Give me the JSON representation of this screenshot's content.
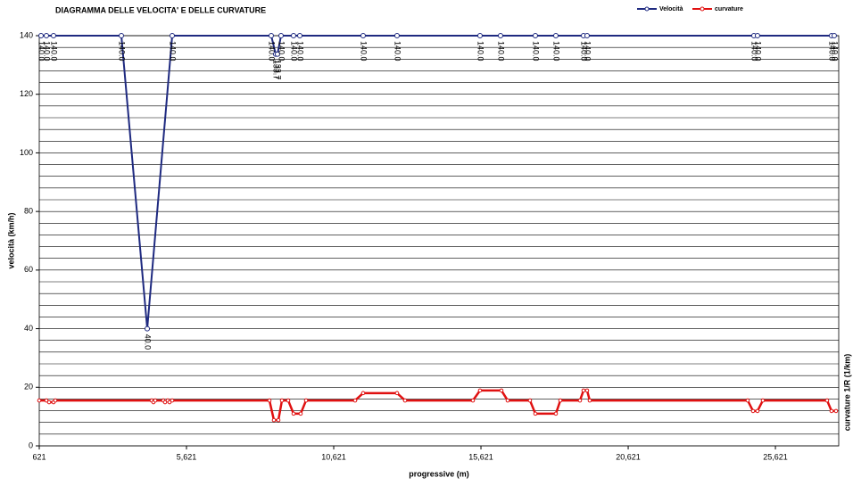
{
  "chart_data": {
    "type": "line",
    "title": "DIAGRAMMA DELLE VELOCITA' E DELLE CURVATURE",
    "xlabel": "progressive (m)",
    "ylabel": "velocità (km/h)",
    "y2label": "curvature 1/R (1/km)",
    "xlim": [
      621,
      27771
    ],
    "xticks": [
      {
        "value": 621,
        "label": "621"
      },
      {
        "value": 5621,
        "label": "5,621"
      },
      {
        "value": 10621,
        "label": "10,621"
      },
      {
        "value": 15621,
        "label": "15,621"
      },
      {
        "value": 20621,
        "label": "20,621"
      },
      {
        "value": 25621,
        "label": "25,621"
      }
    ],
    "ylim": [
      0,
      140
    ],
    "yticks": [
      0,
      20,
      40,
      60,
      80,
      100,
      120,
      140
    ],
    "ygrid": [
      0,
      4,
      8,
      12,
      16,
      20,
      24,
      28,
      32,
      36,
      40,
      44,
      48,
      52,
      56,
      60,
      64,
      68,
      72,
      76,
      80,
      84,
      88,
      92,
      96,
      100,
      104,
      108,
      112,
      116,
      120,
      124,
      128,
      132,
      136,
      140
    ],
    "y2lim": [
      0,
      140
    ],
    "legend": "top-right",
    "series": [
      {
        "name": "Velocità",
        "color": "#1f2a80",
        "x": [
          681,
          863,
          1106,
          3409,
          4288,
          5136,
          8499,
          8650,
          8711,
          8832,
          9256,
          9469,
          11620,
          12771,
          15589,
          16286,
          17468,
          18165,
          19104,
          19225,
          24891,
          25012,
          27527,
          27618
        ],
        "values": [
          140,
          140,
          140,
          140,
          40,
          140,
          140,
          133.7,
          133.7,
          140,
          140,
          140,
          140,
          140,
          140,
          140,
          140,
          140,
          140,
          140,
          140,
          140,
          140,
          140
        ],
        "value_labels": [
          "140.0",
          "140.0",
          "140.0",
          "140.0",
          "40.0",
          "140.0",
          "140.0",
          "133.7",
          "133.7",
          "140.0",
          "140.0",
          "140.0",
          "140.0",
          "140.0",
          "140.0",
          "140.0",
          "140.0",
          "140.0",
          "140.0",
          "140.0",
          "140.0",
          "140.0",
          "140.0",
          "140.0"
        ]
      },
      {
        "name": "curvature",
        "color": "#e01010",
        "axis": "y2",
        "x": [
          621,
          863,
          954,
          1106,
          1166,
          4439,
          4499,
          4560,
          4833,
          4893,
          4984,
          5045,
          5136,
          8438,
          8590,
          8741,
          8863,
          9075,
          9257,
          9499,
          9681,
          11347,
          11620,
          12771,
          13044,
          15347,
          15589,
          16316,
          16529,
          17286,
          17468,
          18165,
          18317,
          18983,
          19104,
          19225,
          19316,
          24679,
          24861,
          25012,
          25194,
          27376,
          27527,
          27679
        ],
        "values": [
          15.5,
          15.5,
          14.9,
          14.9,
          15.5,
          15.5,
          14.9,
          15.5,
          15.5,
          14.9,
          15.5,
          14.9,
          15.5,
          15.5,
          8.8,
          8.8,
          15.5,
          15.5,
          11.0,
          11.0,
          15.5,
          15.5,
          18.0,
          18.0,
          15.5,
          15.5,
          18.9,
          18.9,
          15.5,
          15.5,
          11.0,
          11.0,
          15.5,
          15.5,
          18.9,
          18.9,
          15.5,
          15.5,
          11.9,
          11.9,
          15.5,
          15.5,
          11.9,
          11.9
        ]
      }
    ]
  }
}
